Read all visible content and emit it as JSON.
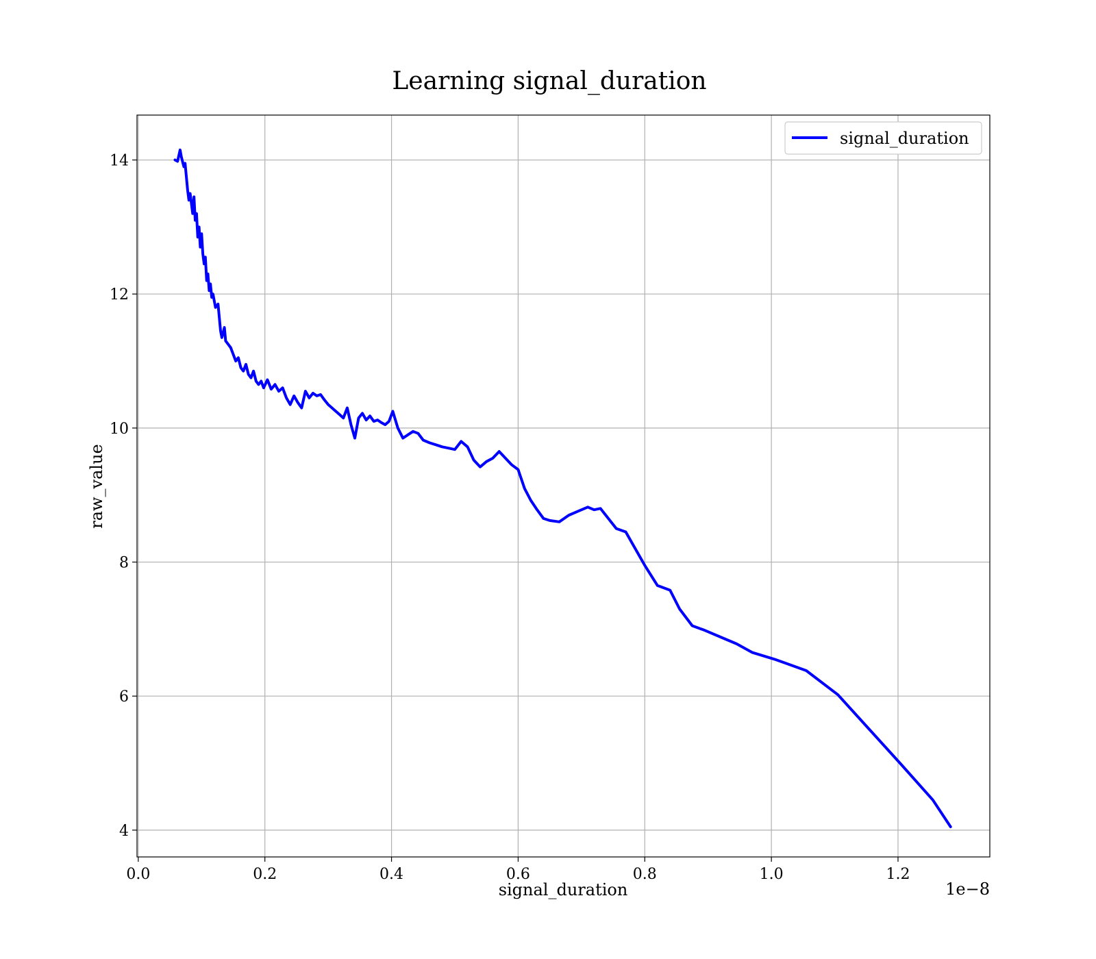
{
  "chart_data": {
    "type": "line",
    "title": "Learning signal_duration",
    "xlabel": "signal_duration",
    "ylabel": "raw_value",
    "x_offset_label": "1e−8",
    "xlim": [
      -0.002,
      1.345
    ],
    "ylim": [
      3.6,
      14.67
    ],
    "xticks": [
      0.0,
      0.2,
      0.4,
      0.6,
      0.8,
      1.0,
      1.2
    ],
    "xtick_labels": [
      "0.0",
      "0.2",
      "0.4",
      "0.6",
      "0.8",
      "1.0",
      "1.2"
    ],
    "yticks": [
      4,
      6,
      8,
      10,
      12,
      14
    ],
    "ytick_labels": [
      "4",
      "6",
      "8",
      "10",
      "12",
      "14"
    ],
    "grid": true,
    "legend_position": "top-right",
    "series": [
      {
        "name": "signal_duration",
        "color": "#0000ff",
        "x": [
          0.058,
          0.062,
          0.066,
          0.068,
          0.072,
          0.074,
          0.078,
          0.08,
          0.082,
          0.086,
          0.088,
          0.09,
          0.092,
          0.094,
          0.096,
          0.098,
          0.1,
          0.102,
          0.104,
          0.106,
          0.108,
          0.11,
          0.112,
          0.114,
          0.116,
          0.118,
          0.122,
          0.126,
          0.13,
          0.132,
          0.136,
          0.138,
          0.142,
          0.146,
          0.15,
          0.154,
          0.158,
          0.162,
          0.166,
          0.17,
          0.174,
          0.178,
          0.182,
          0.186,
          0.19,
          0.194,
          0.198,
          0.204,
          0.21,
          0.216,
          0.222,
          0.228,
          0.234,
          0.24,
          0.246,
          0.252,
          0.258,
          0.264,
          0.27,
          0.276,
          0.282,
          0.288,
          0.294,
          0.3,
          0.306,
          0.312,
          0.318,
          0.324,
          0.33,
          0.336,
          0.342,
          0.348,
          0.354,
          0.36,
          0.366,
          0.372,
          0.378,
          0.384,
          0.39,
          0.396,
          0.402,
          0.41,
          0.418,
          0.426,
          0.434,
          0.442,
          0.45,
          0.46,
          0.47,
          0.48,
          0.49,
          0.5,
          0.51,
          0.52,
          0.53,
          0.54,
          0.55,
          0.56,
          0.57,
          0.58,
          0.59,
          0.6,
          0.61,
          0.62,
          0.63,
          0.64,
          0.65,
          0.665,
          0.68,
          0.695,
          0.71,
          0.72,
          0.73,
          0.74,
          0.755,
          0.77,
          0.785,
          0.8,
          0.82,
          0.84,
          0.855,
          0.875,
          0.895,
          0.92,
          0.945,
          0.97,
          1.005,
          1.055,
          1.105,
          1.155,
          1.205,
          1.255,
          1.283
        ],
        "y": [
          14.0,
          13.98,
          14.15,
          14.05,
          13.9,
          13.95,
          13.55,
          13.4,
          13.5,
          13.2,
          13.45,
          13.1,
          13.2,
          12.85,
          13.0,
          12.7,
          12.9,
          12.6,
          12.45,
          12.55,
          12.2,
          12.3,
          12.05,
          12.15,
          11.95,
          12.0,
          11.8,
          11.85,
          11.45,
          11.35,
          11.5,
          11.3,
          11.25,
          11.2,
          11.1,
          11.0,
          11.05,
          10.9,
          10.85,
          10.95,
          10.8,
          10.75,
          10.85,
          10.7,
          10.65,
          10.7,
          10.6,
          10.72,
          10.58,
          10.65,
          10.55,
          10.6,
          10.45,
          10.35,
          10.48,
          10.38,
          10.3,
          10.55,
          10.45,
          10.52,
          10.48,
          10.5,
          10.42,
          10.35,
          10.3,
          10.25,
          10.2,
          10.15,
          10.3,
          10.05,
          9.85,
          10.15,
          10.22,
          10.12,
          10.18,
          10.1,
          10.12,
          10.08,
          10.05,
          10.1,
          10.25,
          10.0,
          9.85,
          9.9,
          9.95,
          9.92,
          9.82,
          9.78,
          9.75,
          9.72,
          9.7,
          9.68,
          9.8,
          9.72,
          9.52,
          9.42,
          9.5,
          9.55,
          9.65,
          9.55,
          9.45,
          9.38,
          9.1,
          8.92,
          8.78,
          8.65,
          8.62,
          8.6,
          8.7,
          8.76,
          8.82,
          8.78,
          8.8,
          8.68,
          8.5,
          8.45,
          8.2,
          7.95,
          7.65,
          7.58,
          7.3,
          7.05,
          6.98,
          6.88,
          6.78,
          6.65,
          6.55,
          6.38,
          6.02,
          5.5,
          4.98,
          4.45,
          4.05
        ]
      }
    ]
  }
}
